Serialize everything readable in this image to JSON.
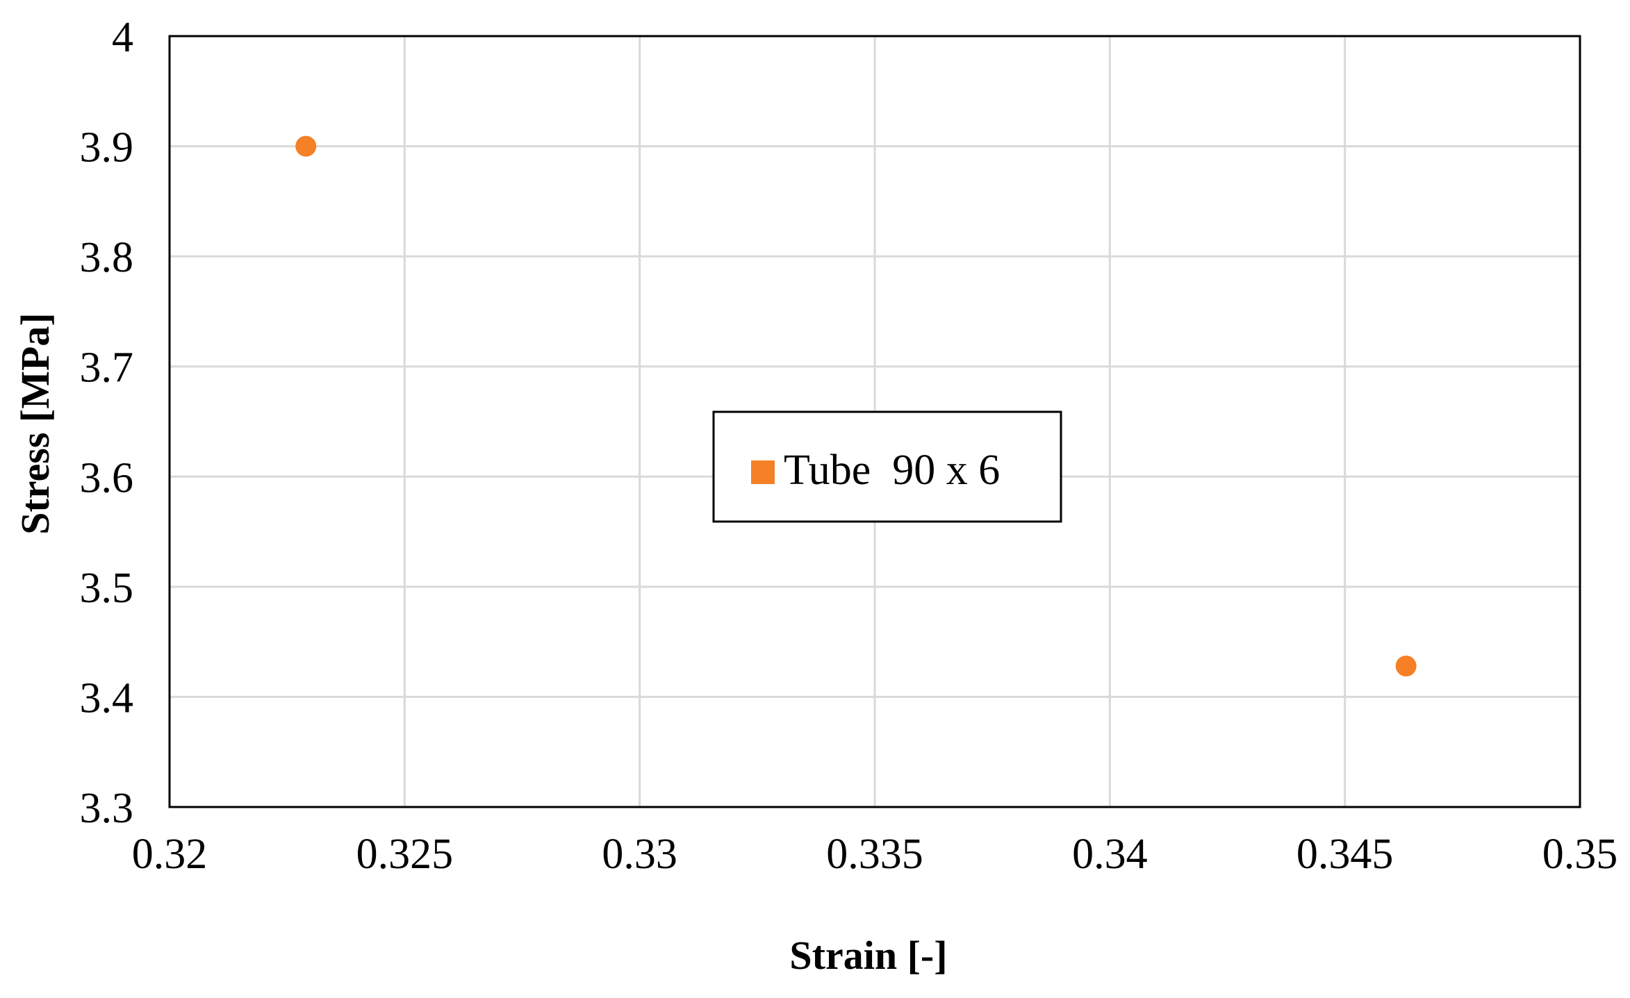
{
  "chart_data": {
    "type": "scatter",
    "title": "",
    "xlabel": "Strain  [-]",
    "ylabel": "Stress [MPa]",
    "xlim": [
      0.32,
      0.35
    ],
    "ylim": [
      3.3,
      4.0
    ],
    "xticks": [
      "0.32",
      "0.325",
      "0.33",
      "0.335",
      "0.34",
      "0.345",
      "0.35"
    ],
    "yticks": [
      "3.3",
      "3.4",
      "3.5",
      "3.6",
      "3.7",
      "3.8",
      "3.9",
      "4"
    ],
    "grid": true,
    "legend_position": "center",
    "series": [
      {
        "name": "Tube  90 x 6",
        "color": "#F58025",
        "x": [
          0.3229,
          0.3463
        ],
        "y": [
          3.9,
          3.428
        ]
      }
    ]
  }
}
